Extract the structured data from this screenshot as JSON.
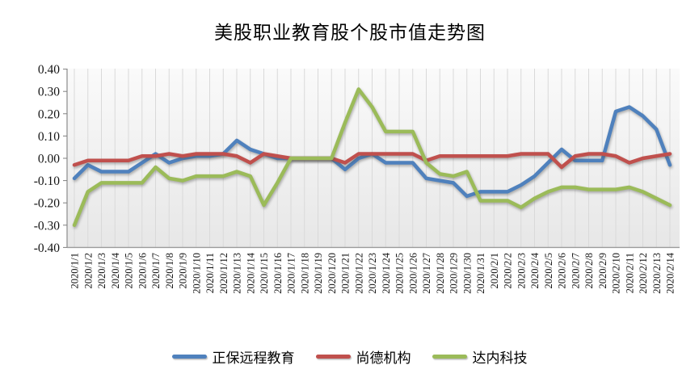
{
  "title": "美股职业教育股个股市值走势图",
  "chart_data": {
    "type": "line",
    "x": [
      "2020/1/1",
      "2020/1/2",
      "2020/1/3",
      "2020/1/4",
      "2020/1/5",
      "2020/1/6",
      "2020/1/7",
      "2020/1/8",
      "2020/1/9",
      "2020/1/10",
      "2020/1/11",
      "2020/1/12",
      "2020/1/13",
      "2020/1/14",
      "2020/1/15",
      "2020/1/16",
      "2020/1/17",
      "2020/1/18",
      "2020/1/19",
      "2020/1/20",
      "2020/1/21",
      "2020/1/22",
      "2020/1/23",
      "2020/1/24",
      "2020/1/25",
      "2020/1/26",
      "2020/1/27",
      "2020/1/28",
      "2020/1/29",
      "2020/1/30",
      "2020/1/31",
      "2020/2/1",
      "2020/2/2",
      "2020/2/3",
      "2020/2/4",
      "2020/2/5",
      "2020/2/6",
      "2020/2/7",
      "2020/2/8",
      "2020/2/9",
      "2020/2/10",
      "2020/2/11",
      "2020/2/12",
      "2020/2/13",
      "2020/2/14"
    ],
    "series": [
      {
        "name": "正保远程教育",
        "color": "#4F81BD",
        "values": [
          -0.09,
          -0.03,
          -0.06,
          -0.06,
          -0.06,
          -0.02,
          0.02,
          -0.02,
          0.0,
          0.01,
          0.01,
          0.02,
          0.08,
          0.04,
          0.02,
          0.0,
          0.0,
          0.0,
          0.0,
          0.0,
          -0.05,
          0.0,
          0.02,
          -0.02,
          -0.02,
          -0.02,
          -0.09,
          -0.1,
          -0.11,
          -0.17,
          -0.15,
          -0.15,
          -0.15,
          -0.12,
          -0.08,
          -0.02,
          0.04,
          -0.01,
          -0.01,
          -0.01,
          0.21,
          0.23,
          0.19,
          0.13,
          -0.03
        ]
      },
      {
        "name": "尚德机构",
        "color": "#C0504D",
        "values": [
          -0.03,
          -0.01,
          -0.01,
          -0.01,
          -0.01,
          0.01,
          0.01,
          0.02,
          0.01,
          0.02,
          0.02,
          0.02,
          0.01,
          -0.02,
          0.02,
          0.01,
          0.0,
          0.0,
          0.0,
          0.0,
          -0.02,
          0.02,
          0.02,
          0.02,
          0.02,
          0.02,
          -0.01,
          0.01,
          0.01,
          0.01,
          0.01,
          0.01,
          0.01,
          0.02,
          0.02,
          0.02,
          -0.04,
          0.01,
          0.02,
          0.02,
          0.01,
          -0.02,
          0.0,
          0.01,
          0.02
        ]
      },
      {
        "name": "达内科技",
        "color": "#9BBB59",
        "values": [
          -0.3,
          -0.15,
          -0.11,
          -0.11,
          -0.11,
          -0.11,
          -0.04,
          -0.09,
          -0.1,
          -0.08,
          -0.08,
          -0.08,
          -0.06,
          -0.08,
          -0.21,
          -0.11,
          0.0,
          0.0,
          0.0,
          0.0,
          0.16,
          0.31,
          0.23,
          0.12,
          0.12,
          0.12,
          -0.02,
          -0.07,
          -0.08,
          -0.06,
          -0.19,
          -0.19,
          -0.19,
          -0.22,
          -0.18,
          -0.15,
          -0.13,
          -0.13,
          -0.14,
          -0.14,
          -0.14,
          -0.13,
          -0.15,
          -0.18,
          -0.21
        ]
      }
    ],
    "ylim": [
      -0.4,
      0.4
    ],
    "ytick_step": 0.1,
    "ytick_labels": [
      "0.40",
      "0.30",
      "0.20",
      "0.10",
      "0.00",
      "-0.10",
      "-0.20",
      "-0.30",
      "-0.40"
    ],
    "grid": "vertical",
    "legend_position": "bottom",
    "plot_bg_top": "#fafafa",
    "plot_bg_bottom": "#e7e7e7",
    "gridline_color": "#d9d9d9",
    "axis_color": "#9b9b9b"
  }
}
